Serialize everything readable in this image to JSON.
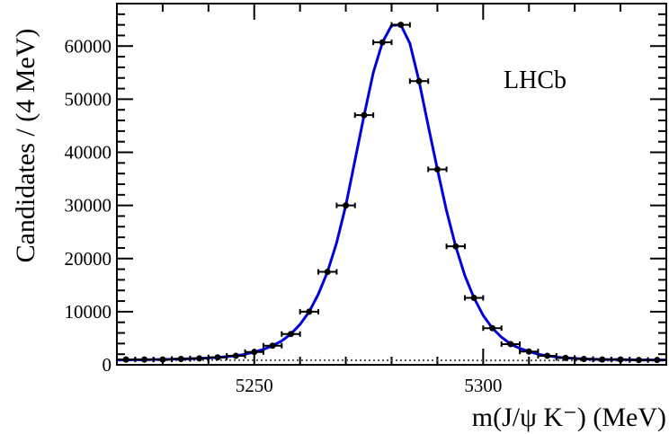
{
  "chart_data": {
    "type": "scatter",
    "experiment_label": "LHCb",
    "xlabel": "m(J/ψ K⁻) (MeV)",
    "ylabel": "Candidates / (4 MeV)",
    "xlim": [
      5220,
      5340
    ],
    "ylim": [
      0,
      68000
    ],
    "xticks": [
      5250,
      5300
    ],
    "yticks": [
      0,
      10000,
      20000,
      30000,
      40000,
      50000,
      60000
    ],
    "bin_width": 4,
    "grid": false,
    "legend": "none",
    "series": [
      {
        "type": "points_with_errorbars",
        "color": "#000000",
        "x": [
          5222,
          5226,
          5230,
          5234,
          5238,
          5242,
          5246,
          5250,
          5254,
          5258,
          5262,
          5266,
          5270,
          5274,
          5278,
          5282,
          5286,
          5290,
          5294,
          5298,
          5302,
          5306,
          5310,
          5314,
          5318,
          5322,
          5326,
          5330,
          5334,
          5338
        ],
        "y": [
          1000,
          1000,
          1000,
          1100,
          1200,
          1400,
          1700,
          2400,
          3600,
          5800,
          10000,
          17500,
          30000,
          47000,
          60700,
          64000,
          53400,
          36800,
          22300,
          12600,
          6900,
          3900,
          2500,
          1700,
          1300,
          1100,
          1000,
          1000,
          900,
          900
        ]
      },
      {
        "type": "fit_line",
        "color": "#0000dd",
        "x": [
          5220,
          5222,
          5224,
          5226,
          5228,
          5230,
          5232,
          5234,
          5236,
          5238,
          5240,
          5242,
          5244,
          5246,
          5248,
          5250,
          5252,
          5254,
          5256,
          5258,
          5260,
          5262,
          5264,
          5266,
          5268,
          5270,
          5272,
          5274,
          5276,
          5278,
          5280,
          5282,
          5284,
          5286,
          5288,
          5290,
          5292,
          5294,
          5296,
          5298,
          5300,
          5302,
          5304,
          5306,
          5308,
          5310,
          5312,
          5314,
          5316,
          5318,
          5320,
          5322,
          5324,
          5326,
          5328,
          5330,
          5332,
          5334,
          5336,
          5338,
          5340
        ],
        "y": [
          900,
          900,
          950,
          950,
          1000,
          1000,
          1050,
          1100,
          1150,
          1200,
          1300,
          1400,
          1550,
          1700,
          2000,
          2400,
          2900,
          3600,
          4500,
          5800,
          7600,
          10000,
          13300,
          17500,
          23000,
          30000,
          38500,
          47000,
          55000,
          60700,
          63900,
          64000,
          60500,
          53400,
          45000,
          36800,
          29000,
          22300,
          16800,
          12600,
          9300,
          6900,
          5200,
          3900,
          3100,
          2500,
          2000,
          1700,
          1450,
          1300,
          1200,
          1100,
          1050,
          1000,
          1000,
          1000,
          950,
          900,
          900,
          900,
          900
        ]
      },
      {
        "type": "background_line",
        "style": "dotted",
        "color": "#555555",
        "x": [
          5220,
          5340
        ],
        "y": [
          900,
          800
        ]
      }
    ]
  }
}
